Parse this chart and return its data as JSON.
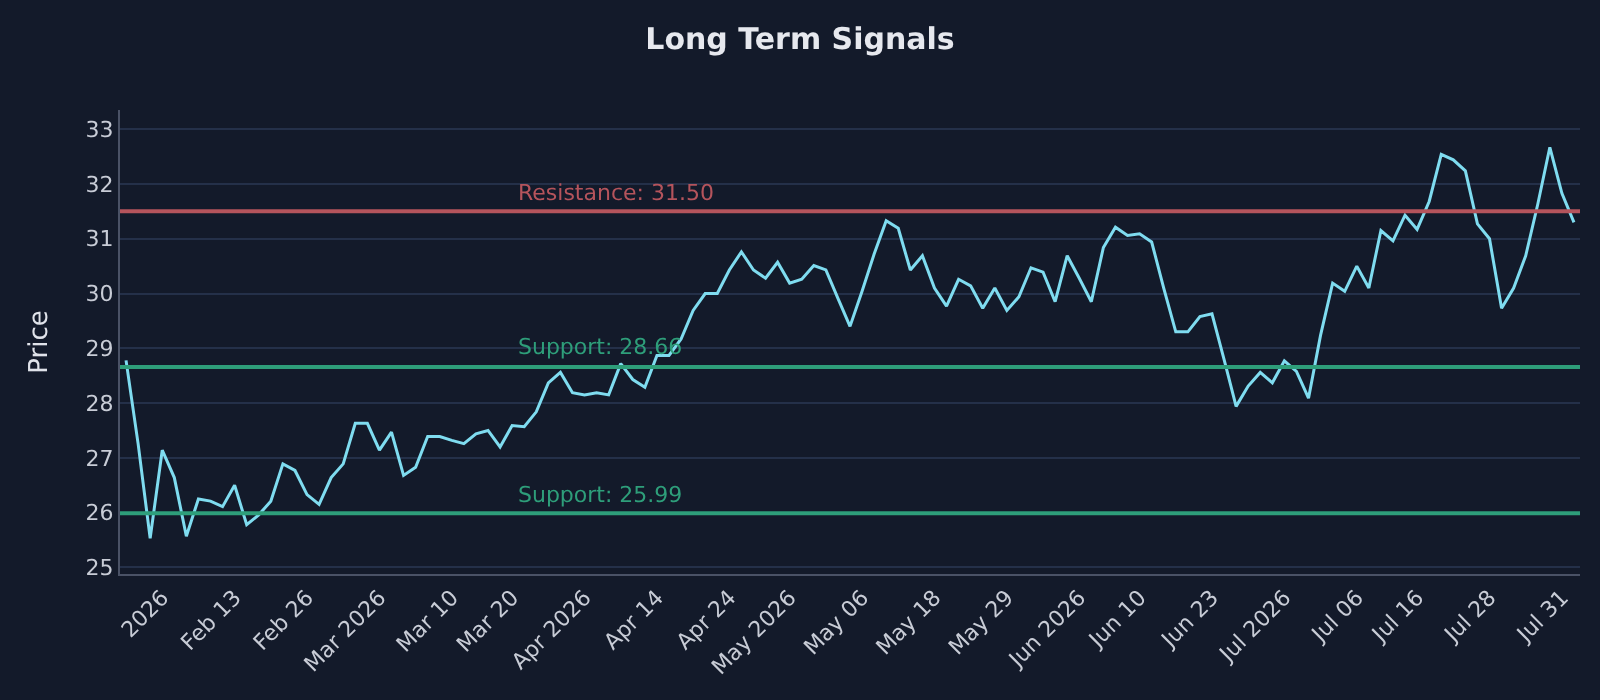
{
  "chart_data": {
    "type": "line",
    "title": "Long Term Signals",
    "ylabel": "Price",
    "categories": [
      null,
      null,
      null,
      "2026",
      null,
      null,
      null,
      null,
      null,
      "Feb 13",
      null,
      null,
      null,
      null,
      null,
      "Feb 26",
      null,
      null,
      null,
      null,
      null,
      "Mar 2026",
      null,
      null,
      null,
      null,
      null,
      "Mar 10",
      null,
      null,
      null,
      null,
      "Mar 20",
      null,
      null,
      null,
      null,
      null,
      "Apr 2026",
      null,
      null,
      null,
      null,
      null,
      "Apr 14",
      null,
      null,
      null,
      null,
      null,
      "Apr 24",
      null,
      null,
      null,
      null,
      "May 2026",
      null,
      null,
      null,
      null,
      null,
      "May 06",
      null,
      null,
      null,
      null,
      null,
      "May 18",
      null,
      null,
      null,
      null,
      null,
      "May 29",
      null,
      null,
      null,
      null,
      null,
      "Jun 2026",
      null,
      null,
      null,
      null,
      "Jun 10",
      null,
      null,
      null,
      null,
      null,
      "Jun 23",
      null,
      null,
      null,
      null,
      null,
      "Jul 2026",
      null,
      null,
      null,
      null,
      null,
      "Jul 06",
      null,
      null,
      null,
      null,
      "Jul 16",
      null,
      null,
      null,
      null,
      null,
      "Jul 28",
      null,
      null,
      null,
      null,
      null,
      "Jul 31",
      null
    ],
    "series": [
      {
        "color": "#7fdcf0",
        "values": [
          28.78,
          27.26,
          25.53,
          27.14,
          26.64,
          25.57,
          26.25,
          26.21,
          26.11,
          26.5,
          25.78,
          25.96,
          26.21,
          26.89,
          26.77,
          26.33,
          26.15,
          26.64,
          26.89,
          27.63,
          27.63,
          27.14,
          27.47,
          26.68,
          26.83,
          27.39,
          27.39,
          27.32,
          27.26,
          27.44,
          27.5,
          27.2,
          27.59,
          27.57,
          27.84,
          28.37,
          28.56,
          28.19,
          28.15,
          28.19,
          28.15,
          28.72,
          28.43,
          28.29,
          28.87,
          28.87,
          29.17,
          29.69,
          30.0,
          30.0,
          30.43,
          30.76,
          30.43,
          30.28,
          30.57,
          30.19,
          30.26,
          30.51,
          30.43,
          29.91,
          29.4,
          30.04,
          30.72,
          31.33,
          31.19,
          30.43,
          30.69,
          30.1,
          29.77,
          30.26,
          30.14,
          29.73,
          30.1,
          29.69,
          29.94,
          30.47,
          30.39,
          29.85,
          30.69,
          30.28,
          29.85,
          30.84,
          31.21,
          31.06,
          31.09,
          30.94,
          30.1,
          29.3,
          29.3,
          29.58,
          29.63,
          28.8,
          27.94,
          28.31,
          28.56,
          28.37,
          28.77,
          28.58,
          28.09,
          29.24,
          30.19,
          30.04,
          30.5,
          30.1,
          31.15,
          30.96,
          31.43,
          31.17,
          31.68,
          32.54,
          32.44,
          32.24,
          31.27,
          31.0,
          29.73,
          30.1,
          30.69,
          31.63,
          32.67,
          31.83,
          31.3
        ]
      }
    ],
    "ylim": [
      24.88,
      33.35
    ],
    "yticks": [
      25,
      26,
      27,
      28,
      29,
      30,
      31,
      32,
      33
    ],
    "grid": "y",
    "ref_lines": [
      {
        "axis": "y",
        "value": 31.5,
        "label": "Resistance: 31.50",
        "color": "#b5545c"
      },
      {
        "axis": "y",
        "value": 28.66,
        "label": "Support: 28.66",
        "color": "#2e9e7a"
      },
      {
        "axis": "y",
        "value": 25.99,
        "label": "Support: 25.99",
        "color": "#2e9e7a"
      }
    ]
  }
}
